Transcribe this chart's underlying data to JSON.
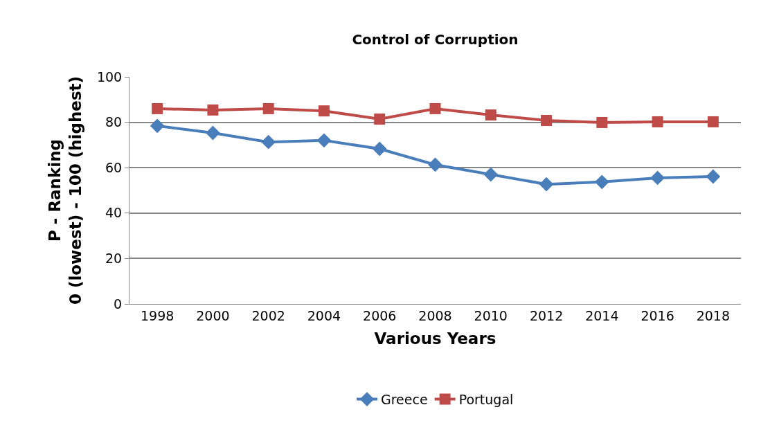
{
  "chart_data": {
    "type": "line",
    "title": "Control of Corruption",
    "xlabel": "Various Years",
    "ylabel": "P - Ranking\n0 (lowest) - 100 (highest)",
    "categories": [
      "1998",
      "2000",
      "2002",
      "2004",
      "2006",
      "2008",
      "2010",
      "2012",
      "2014",
      "2016",
      "2018"
    ],
    "series": [
      {
        "name": "Greece",
        "color": "#4a7ebb",
        "marker": "diamond",
        "values": [
          78.4,
          75.3,
          71.3,
          72,
          68.3,
          61.3,
          57,
          52.7,
          53.7,
          55.5,
          56.1
        ]
      },
      {
        "name": "Portugal",
        "color": "#be4b48",
        "marker": "square",
        "values": [
          86,
          85.4,
          86,
          85,
          81.4,
          86,
          83.2,
          80.8,
          79.9,
          80.2,
          80.2
        ]
      }
    ],
    "ylim": [
      0,
      100
    ],
    "yticks": [
      0,
      20,
      40,
      60,
      80,
      100
    ],
    "grid": "y",
    "legend": "bottom",
    "line_style": "solid"
  }
}
